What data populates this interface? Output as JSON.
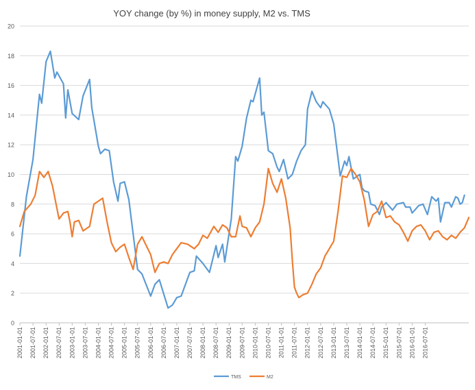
{
  "chart_data": {
    "type": "line",
    "title": "YOY change (by %) in money supply, M2 vs. TMS",
    "xlabel": "",
    "ylabel": "",
    "ylim": [
      0,
      20
    ],
    "yticks": [
      0,
      2,
      4,
      6,
      8,
      10,
      12,
      14,
      16,
      18,
      20
    ],
    "grid": true,
    "legend_position": "bottom",
    "x_tick_labels": [
      "2001-01-01",
      "2001-07-01",
      "2002-01-01",
      "2002-07-01",
      "2003-01-01",
      "2003-07-01",
      "2004-01-01",
      "2004-07-01",
      "2005-01-01",
      "2005-07-01",
      "2006-01-01",
      "2006-07-01",
      "2007-01-01",
      "2007-07-01",
      "2008-01-01",
      "2008-07-01",
      "2009-01-01",
      "2009-07-01",
      "2010-01-01",
      "2010-07-01",
      "2011-01-01",
      "2011-07-01",
      "2012-01-01",
      "2012-07-01",
      "2013-01-01",
      "2013-07-01",
      "2014-01-01",
      "2014-07-01",
      "2015-01-01",
      "2015-07-01",
      "2016-01-01",
      "2016-07-01"
    ],
    "x_tick_months": [
      0,
      6,
      12,
      18,
      24,
      30,
      36,
      42,
      48,
      54,
      60,
      66,
      72,
      78,
      84,
      90,
      96,
      102,
      108,
      114,
      120,
      126,
      132,
      138,
      144,
      150,
      156,
      162,
      168,
      174,
      180,
      186
    ],
    "x_start": "2001-01",
    "colors": {
      "TMS": "#5b9bd5",
      "M2": "#ed7d31"
    },
    "series": [
      {
        "name": "TMS",
        "points": [
          [
            "2001-01",
            4.5
          ],
          [
            "2001-04",
            8.5
          ],
          [
            "2001-07",
            11.0
          ],
          [
            "2001-10",
            15.4
          ],
          [
            "2001-11",
            14.8
          ],
          [
            "2002-01",
            17.6
          ],
          [
            "2002-03",
            18.3
          ],
          [
            "2002-05",
            16.5
          ],
          [
            "2002-06",
            16.9
          ],
          [
            "2002-09",
            16.1
          ],
          [
            "2002-10",
            13.8
          ],
          [
            "2002-11",
            15.7
          ],
          [
            "2003-01",
            14.1
          ],
          [
            "2003-04",
            13.7
          ],
          [
            "2003-06",
            15.3
          ],
          [
            "2003-09",
            16.4
          ],
          [
            "2003-10",
            14.5
          ],
          [
            "2004-01",
            11.9
          ],
          [
            "2004-02",
            11.4
          ],
          [
            "2004-04",
            11.7
          ],
          [
            "2004-06",
            11.6
          ],
          [
            "2004-08",
            9.5
          ],
          [
            "2004-10",
            8.2
          ],
          [
            "2004-11",
            9.4
          ],
          [
            "2005-01",
            9.5
          ],
          [
            "2005-03",
            8.3
          ],
          [
            "2005-07",
            3.6
          ],
          [
            "2005-09",
            3.3
          ],
          [
            "2006-01",
            1.8
          ],
          [
            "2006-03",
            2.6
          ],
          [
            "2006-05",
            2.9
          ],
          [
            "2006-09",
            1.0
          ],
          [
            "2006-11",
            1.2
          ],
          [
            "2007-01",
            1.7
          ],
          [
            "2007-03",
            1.8
          ],
          [
            "2007-07",
            3.4
          ],
          [
            "2007-09",
            3.5
          ],
          [
            "2007-10",
            4.5
          ],
          [
            "2008-01",
            4.0
          ],
          [
            "2008-04",
            3.4
          ],
          [
            "2008-07",
            5.2
          ],
          [
            "2008-08",
            4.4
          ],
          [
            "2008-10",
            5.3
          ],
          [
            "2008-11",
            4.1
          ],
          [
            "2009-02",
            7.0
          ],
          [
            "2009-04",
            11.2
          ],
          [
            "2009-05",
            10.9
          ],
          [
            "2009-07",
            11.9
          ],
          [
            "2009-09",
            13.8
          ],
          [
            "2009-11",
            15.0
          ],
          [
            "2009-12",
            14.9
          ],
          [
            "2010-03",
            16.5
          ],
          [
            "2010-04",
            14.0
          ],
          [
            "2010-05",
            14.2
          ],
          [
            "2010-07",
            11.6
          ],
          [
            "2010-09",
            11.4
          ],
          [
            "2010-11",
            10.5
          ],
          [
            "2010-12",
            10.2
          ],
          [
            "2011-02",
            11.0
          ],
          [
            "2011-04",
            9.7
          ],
          [
            "2011-06",
            10.0
          ],
          [
            "2011-08",
            10.9
          ],
          [
            "2011-10",
            11.6
          ],
          [
            "2011-12",
            12.0
          ],
          [
            "2012-01",
            14.4
          ],
          [
            "2012-03",
            15.6
          ],
          [
            "2012-05",
            14.9
          ],
          [
            "2012-07",
            14.5
          ],
          [
            "2012-08",
            14.9
          ],
          [
            "2012-11",
            14.4
          ],
          [
            "2013-01",
            13.4
          ],
          [
            "2013-04",
            9.9
          ],
          [
            "2013-06",
            10.9
          ],
          [
            "2013-07",
            10.6
          ],
          [
            "2013-08",
            11.2
          ],
          [
            "2013-10",
            9.7
          ],
          [
            "2014-01",
            10.0
          ],
          [
            "2014-02",
            9.1
          ],
          [
            "2014-03",
            8.9
          ],
          [
            "2014-05",
            8.8
          ],
          [
            "2014-06",
            8.0
          ],
          [
            "2014-08",
            7.9
          ],
          [
            "2014-10",
            7.3
          ],
          [
            "2014-11",
            7.8
          ],
          [
            "2015-01",
            8.1
          ],
          [
            "2015-04",
            7.6
          ],
          [
            "2015-06",
            8.0
          ],
          [
            "2015-09",
            8.1
          ],
          [
            "2015-10",
            7.8
          ],
          [
            "2015-12",
            7.8
          ],
          [
            "2016-01",
            7.4
          ],
          [
            "2016-04",
            7.9
          ],
          [
            "2016-06",
            8.0
          ],
          [
            "2016-08",
            7.3
          ],
          [
            "2016-10",
            8.5
          ],
          [
            "2016-12",
            8.2
          ],
          [
            "2017-01",
            8.4
          ],
          [
            "2017-02",
            6.8
          ],
          [
            "2017-04",
            8.1
          ],
          [
            "2017-06",
            8.1
          ],
          [
            "2017-07",
            7.8
          ],
          [
            "2017-09",
            8.5
          ],
          [
            "2017-10",
            8.4
          ],
          [
            "2017-11",
            8.0
          ],
          [
            "2017-12",
            8.1
          ],
          [
            "2018-01",
            8.6
          ]
        ]
      },
      {
        "name": "M2",
        "points": [
          [
            "2001-01",
            6.5
          ],
          [
            "2001-03",
            7.5
          ],
          [
            "2001-06",
            8.0
          ],
          [
            "2001-08",
            8.6
          ],
          [
            "2001-10",
            10.2
          ],
          [
            "2001-12",
            9.8
          ],
          [
            "2002-02",
            10.2
          ],
          [
            "2002-04",
            9.2
          ],
          [
            "2002-06",
            7.7
          ],
          [
            "2002-07",
            7.0
          ],
          [
            "2002-09",
            7.4
          ],
          [
            "2002-11",
            7.5
          ],
          [
            "2002-12",
            6.8
          ],
          [
            "2003-01",
            5.8
          ],
          [
            "2003-02",
            6.8
          ],
          [
            "2003-04",
            6.9
          ],
          [
            "2003-06",
            6.2
          ],
          [
            "2003-09",
            6.5
          ],
          [
            "2003-11",
            8.0
          ],
          [
            "2004-01",
            8.2
          ],
          [
            "2004-03",
            8.4
          ],
          [
            "2004-05",
            6.8
          ],
          [
            "2004-07",
            5.4
          ],
          [
            "2004-09",
            4.8
          ],
          [
            "2004-11",
            5.1
          ],
          [
            "2005-01",
            5.3
          ],
          [
            "2005-03",
            4.4
          ],
          [
            "2005-05",
            3.6
          ],
          [
            "2005-07",
            5.3
          ],
          [
            "2005-09",
            5.8
          ],
          [
            "2005-11",
            5.2
          ],
          [
            "2006-01",
            4.6
          ],
          [
            "2006-03",
            3.4
          ],
          [
            "2006-05",
            4.0
          ],
          [
            "2006-07",
            4.1
          ],
          [
            "2006-09",
            4.0
          ],
          [
            "2006-11",
            4.6
          ],
          [
            "2007-01",
            5.0
          ],
          [
            "2007-03",
            5.4
          ],
          [
            "2007-06",
            5.3
          ],
          [
            "2007-09",
            5.0
          ],
          [
            "2007-11",
            5.3
          ],
          [
            "2008-01",
            5.9
          ],
          [
            "2008-03",
            5.7
          ],
          [
            "2008-06",
            6.5
          ],
          [
            "2008-08",
            6.1
          ],
          [
            "2008-10",
            6.6
          ],
          [
            "2008-12",
            6.4
          ],
          [
            "2009-02",
            5.8
          ],
          [
            "2009-04",
            5.8
          ],
          [
            "2009-06",
            7.2
          ],
          [
            "2009-07",
            6.5
          ],
          [
            "2009-09",
            6.4
          ],
          [
            "2009-11",
            5.8
          ],
          [
            "2010-01",
            6.4
          ],
          [
            "2010-03",
            6.8
          ],
          [
            "2010-05",
            8.0
          ],
          [
            "2010-07",
            10.4
          ],
          [
            "2010-09",
            9.4
          ],
          [
            "2010-11",
            8.8
          ],
          [
            "2011-01",
            9.7
          ],
          [
            "2011-03",
            8.4
          ],
          [
            "2011-05",
            6.4
          ],
          [
            "2011-06",
            4.2
          ],
          [
            "2011-07",
            2.4
          ],
          [
            "2011-08",
            2.0
          ],
          [
            "2011-09",
            1.7
          ],
          [
            "2011-11",
            1.9
          ],
          [
            "2012-01",
            2.0
          ],
          [
            "2012-03",
            2.6
          ],
          [
            "2012-05",
            3.3
          ],
          [
            "2012-07",
            3.7
          ],
          [
            "2012-09",
            4.5
          ],
          [
            "2012-11",
            5.0
          ],
          [
            "2013-01",
            5.5
          ],
          [
            "2013-03",
            7.5
          ],
          [
            "2013-05",
            9.9
          ],
          [
            "2013-07",
            9.8
          ],
          [
            "2013-09",
            10.4
          ],
          [
            "2013-11",
            10.0
          ],
          [
            "2014-01",
            9.5
          ],
          [
            "2014-03",
            8.3
          ],
          [
            "2014-05",
            6.5
          ],
          [
            "2014-07",
            7.3
          ],
          [
            "2014-09",
            7.5
          ],
          [
            "2014-11",
            8.2
          ],
          [
            "2015-01",
            7.1
          ],
          [
            "2015-03",
            7.2
          ],
          [
            "2015-05",
            6.8
          ],
          [
            "2015-07",
            6.6
          ],
          [
            "2015-09",
            6.1
          ],
          [
            "2015-11",
            5.5
          ],
          [
            "2016-01",
            6.2
          ],
          [
            "2016-03",
            6.5
          ],
          [
            "2016-05",
            6.6
          ],
          [
            "2016-07",
            6.2
          ],
          [
            "2016-09",
            5.6
          ],
          [
            "2016-11",
            6.1
          ],
          [
            "2017-01",
            6.2
          ],
          [
            "2017-03",
            5.8
          ],
          [
            "2017-05",
            5.6
          ],
          [
            "2017-07",
            5.9
          ],
          [
            "2017-09",
            5.7
          ],
          [
            "2017-11",
            6.1
          ],
          [
            "2018-01",
            6.4
          ],
          [
            "2018-03",
            7.1
          ]
        ]
      }
    ]
  }
}
